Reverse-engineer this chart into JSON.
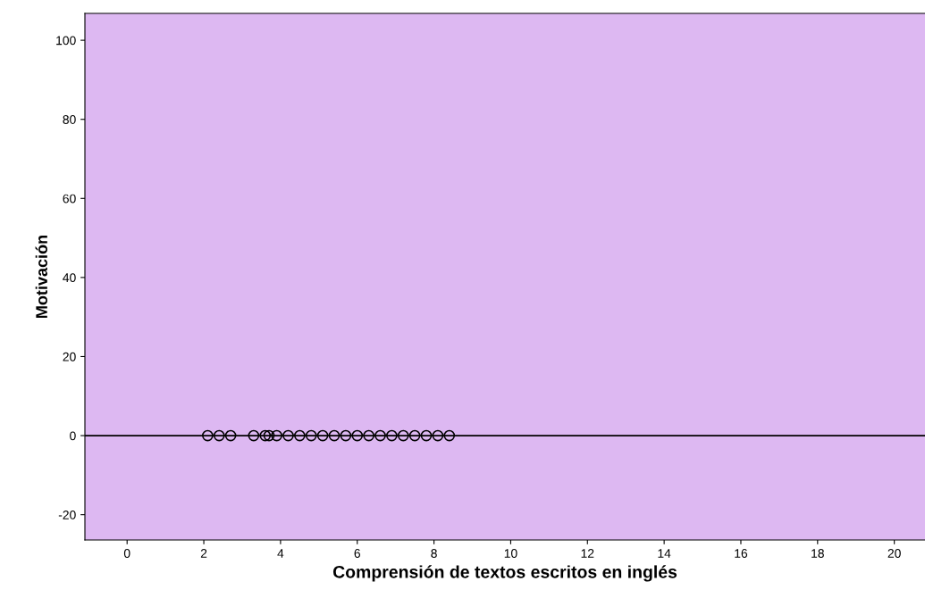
{
  "chart_data": {
    "type": "scatter",
    "xlabel": "Comprensión de textos escritos en inglés",
    "ylabel": "Motivación",
    "x": [
      2.1,
      2.4,
      2.7,
      3.3,
      3.6,
      3.7,
      3.9,
      4.2,
      4.5,
      4.8,
      5.1,
      5.4,
      5.7,
      6.0,
      6.3,
      6.6,
      6.9,
      7.2,
      7.5,
      7.8,
      8.1,
      8.4
    ],
    "series": [
      {
        "color": "#000000",
        "values": [
          0,
          0,
          0,
          0,
          0,
          0,
          0,
          0,
          0,
          0,
          0,
          0,
          0,
          0,
          0,
          0,
          0,
          0,
          0,
          0,
          0,
          0
        ]
      }
    ],
    "xlim": [
      -1.1,
      20.8
    ],
    "ylim": [
      -26.4,
      106.8
    ],
    "xticks": [
      0,
      2,
      4,
      6,
      8,
      10,
      12,
      14,
      16,
      18,
      20
    ],
    "yticks": [
      -20,
      0,
      20,
      40,
      60,
      80,
      100
    ],
    "ref_lines": [
      {
        "axis": "y",
        "value": 0,
        "color": "#000000"
      }
    ],
    "marker": "circle",
    "grid": false,
    "legend": false
  }
}
